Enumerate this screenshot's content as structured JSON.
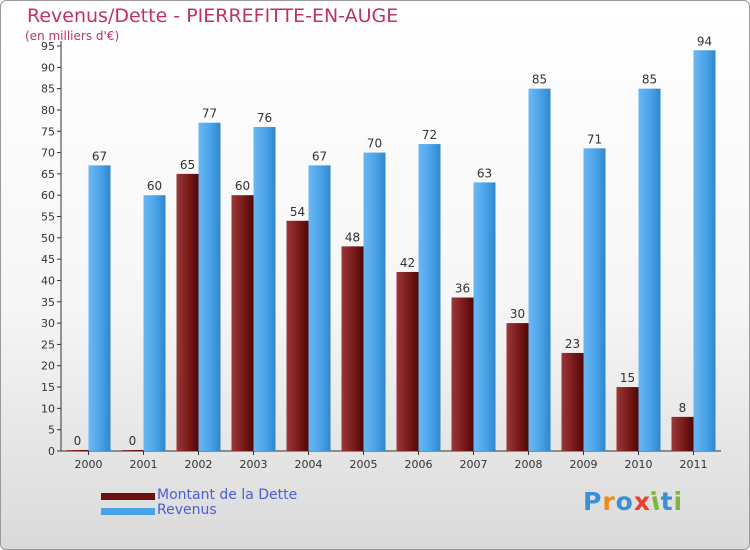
{
  "title": "Revenus/Dette - PIERREFITTE-EN-AUGE",
  "subtitle": "(en milliers d'€)",
  "chart_data": {
    "type": "bar",
    "categories": [
      "2000",
      "2001",
      "2002",
      "2003",
      "2004",
      "2005",
      "2006",
      "2007",
      "2008",
      "2009",
      "2010",
      "2011"
    ],
    "series": [
      {
        "name": "Montant de la Dette",
        "color": "#7a1a1a",
        "values": [
          0,
          0,
          65,
          60,
          54,
          48,
          42,
          36,
          30,
          23,
          15,
          8
        ]
      },
      {
        "name": "Revenus",
        "color": "#4aa3e8",
        "values": [
          67,
          60,
          77,
          76,
          67,
          70,
          72,
          63,
          85,
          71,
          85,
          94
        ]
      }
    ],
    "ylim": [
      0,
      95
    ],
    "ytick_step": 5,
    "grid": false,
    "legend_position": "bottom-left"
  },
  "logo": {
    "text": "Proxiti",
    "letter_colors": [
      "#3a8fd8",
      "#f08a1c",
      "#3a8fd8",
      "#e8402a",
      "#7ab83a",
      "#3a8fd8",
      "#7ab83a"
    ]
  }
}
